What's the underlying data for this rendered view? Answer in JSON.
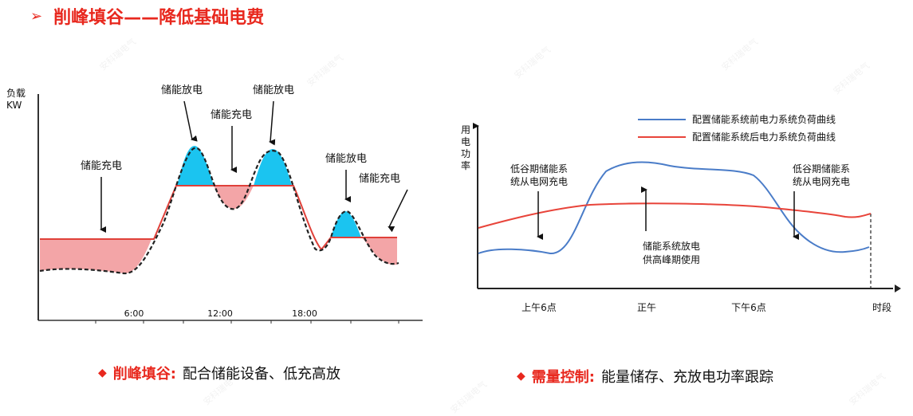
{
  "title": {
    "arrow": "➢",
    "text": "削峰填谷——降低基础电费"
  },
  "watermark": "安科瑞电气",
  "left_chart": {
    "y_axis_label_1": "负载",
    "y_axis_label_2": "KW",
    "x_ticks": [
      "6:00",
      "12:00",
      "18:00"
    ],
    "annotations": [
      "储能充电",
      "储能放电",
      "储能充电",
      "储能放电",
      "储能放电",
      "储能充电"
    ],
    "colors": {
      "charge": "#f3a5a7",
      "discharge": "#1bc4f0",
      "grid": "#e0413a",
      "load": "#222222"
    }
  },
  "right_chart": {
    "y_axis_label": [
      "用",
      "电",
      "功",
      "率"
    ],
    "x_ticks": [
      "上午6点",
      "正午",
      "下午6点"
    ],
    "x_axis_label": "时段",
    "legend": [
      {
        "name": "配置储能系统前电力系统负荷曲线",
        "color": "#4a7cc8"
      },
      {
        "name": "配置储能系统后电力系统负荷曲线",
        "color": "#e8443a"
      }
    ],
    "annotation_left": [
      "低谷期储能系",
      "统从电网充电"
    ],
    "annotation_center": [
      "储能系统放电",
      "供高峰期使用"
    ],
    "annotation_right": [
      "低谷期储能系",
      "统从电网充电"
    ]
  },
  "captions": {
    "left": {
      "diamond": "◆",
      "bold": "削峰填谷:",
      "rest": "配合储能设备、低充高放"
    },
    "right": {
      "diamond": "◆",
      "bold": "需量控制:",
      "rest": "能量储存、充放电功率跟踪"
    }
  }
}
